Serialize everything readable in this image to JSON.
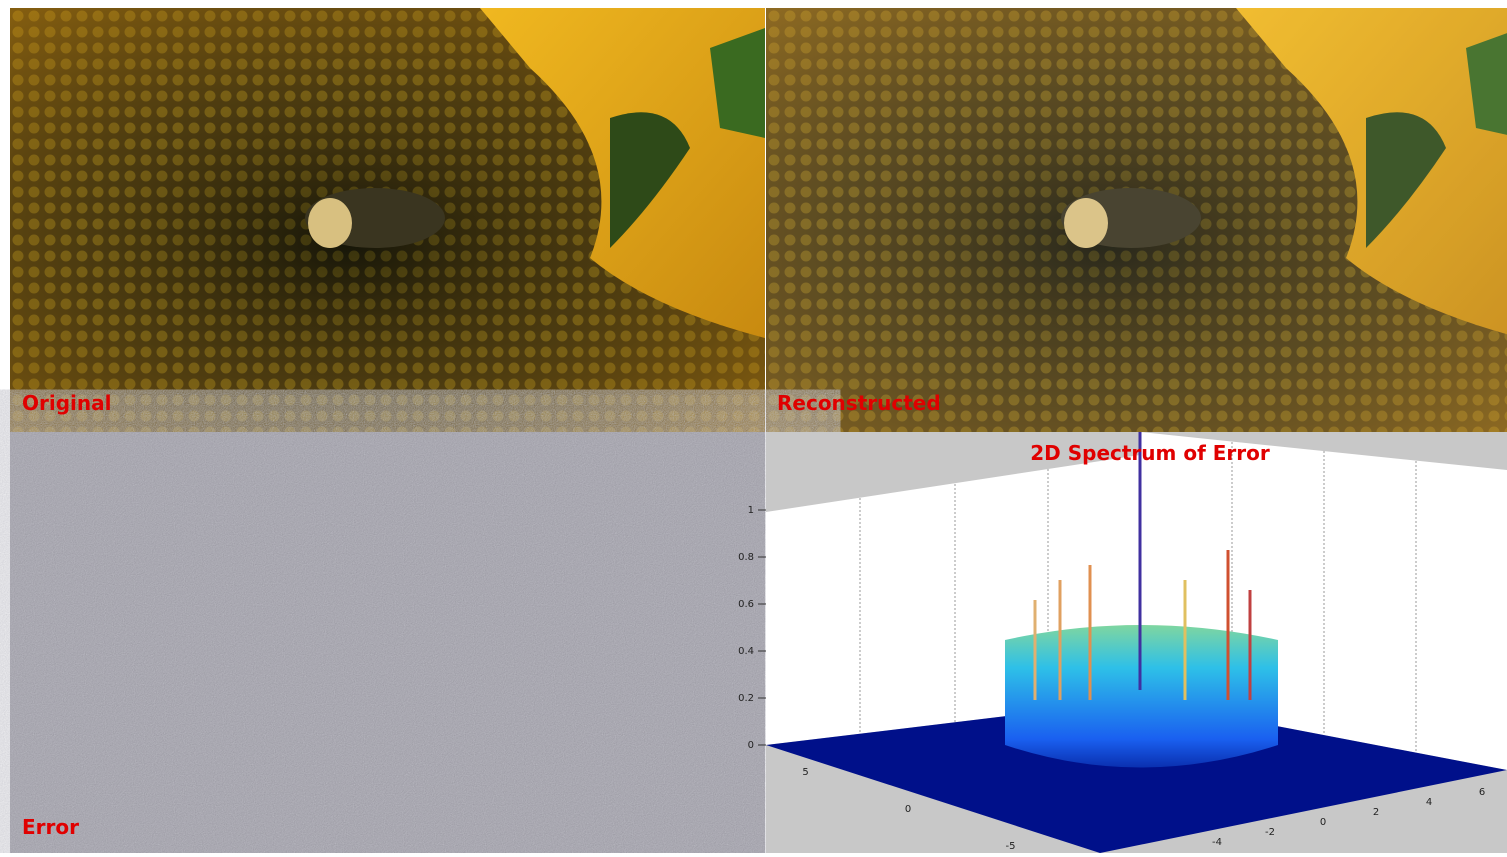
{
  "panels": {
    "original": {
      "label": "Original"
    },
    "reconstructed": {
      "label": "Reconstructed"
    },
    "error": {
      "label": "Error"
    },
    "spectrum": {
      "title": "2D Spectrum of Error",
      "zticks": [
        0,
        0.2,
        0.4,
        0.6,
        0.8,
        1
      ],
      "xticks": [
        5,
        0,
        -5
      ],
      "yticks": [
        -4,
        -2,
        0,
        2,
        4,
        6
      ]
    }
  }
}
